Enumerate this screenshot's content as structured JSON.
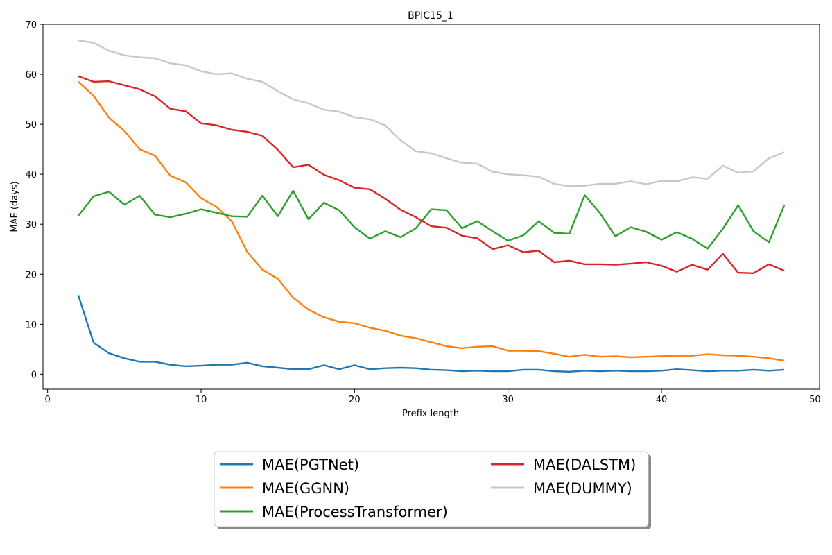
{
  "chart_data": {
    "type": "line",
    "title": "BPIC15_1",
    "xlabel": "Prefix length",
    "ylabel": "MAE (days)",
    "xlim": [
      -0.3,
      50.3
    ],
    "ylim": [
      -3,
      70
    ],
    "xticks": [
      0,
      10,
      20,
      30,
      40,
      50
    ],
    "yticks": [
      0,
      10,
      20,
      30,
      40,
      50,
      60,
      70
    ],
    "grid": false,
    "legend_placement": "below",
    "x": [
      2,
      3,
      4,
      5,
      6,
      7,
      8,
      9,
      10,
      11,
      12,
      13,
      14,
      15,
      16,
      17,
      18,
      19,
      20,
      21,
      22,
      23,
      24,
      25,
      26,
      27,
      28,
      29,
      30,
      31,
      32,
      33,
      34,
      35,
      36,
      37,
      38,
      39,
      40,
      41,
      42,
      43,
      44,
      45,
      46,
      47,
      48
    ],
    "series": [
      {
        "name": "MAE(PGTNet)",
        "color": "#1f77b4",
        "values": [
          15.8,
          6.3,
          4.2,
          3.2,
          2.5,
          2.5,
          1.9,
          1.6,
          1.7,
          1.9,
          1.9,
          2.3,
          1.6,
          1.3,
          1.0,
          1.0,
          1.8,
          1.0,
          1.8,
          1.0,
          1.2,
          1.3,
          1.2,
          0.9,
          0.8,
          0.6,
          0.7,
          0.6,
          0.6,
          0.9,
          0.9,
          0.6,
          0.5,
          0.7,
          0.6,
          0.7,
          0.6,
          0.6,
          0.7,
          1.0,
          0.8,
          0.6,
          0.7,
          0.7,
          0.9,
          0.7,
          0.9
        ]
      },
      {
        "name": "MAE(GGNN)",
        "color": "#ff7f0e",
        "values": [
          58.5,
          55.7,
          51.3,
          48.7,
          45.0,
          43.7,
          39.7,
          38.4,
          35.2,
          33.5,
          30.6,
          24.5,
          20.9,
          19.1,
          15.3,
          12.9,
          11.4,
          10.5,
          10.2,
          9.3,
          8.7,
          7.7,
          7.2,
          6.4,
          5.6,
          5.2,
          5.5,
          5.6,
          4.7,
          4.7,
          4.6,
          4.1,
          3.5,
          3.9,
          3.5,
          3.6,
          3.4,
          3.5,
          3.6,
          3.7,
          3.7,
          4.0,
          3.8,
          3.7,
          3.5,
          3.2,
          2.7
        ]
      },
      {
        "name": "MAE(ProcessTransformer)",
        "color": "#2ca02c",
        "values": [
          31.7,
          35.6,
          36.5,
          33.9,
          35.7,
          31.9,
          31.4,
          32.1,
          33.0,
          32.3,
          31.6,
          31.5,
          35.7,
          31.6,
          36.7,
          31.0,
          34.3,
          32.8,
          29.4,
          27.1,
          28.6,
          27.4,
          29.2,
          33.0,
          32.8,
          29.2,
          30.6,
          28.6,
          26.7,
          27.8,
          30.6,
          28.3,
          28.1,
          35.8,
          32.2,
          27.6,
          29.4,
          28.5,
          26.9,
          28.4,
          27.1,
          25.1,
          29.1,
          33.8,
          28.6,
          26.4,
          33.8
        ]
      },
      {
        "name": "MAE(DALSTM)",
        "color": "#d62728",
        "values": [
          59.6,
          58.5,
          58.6,
          57.8,
          57.0,
          55.6,
          53.1,
          52.6,
          50.2,
          49.8,
          48.9,
          48.5,
          47.7,
          44.9,
          41.4,
          41.9,
          39.9,
          38.8,
          37.3,
          37.0,
          35.1,
          32.9,
          31.4,
          29.6,
          29.3,
          27.7,
          27.2,
          25.0,
          25.8,
          24.4,
          24.7,
          22.4,
          22.7,
          22.0,
          22.0,
          21.9,
          22.1,
          22.4,
          21.7,
          20.5,
          21.9,
          20.9,
          24.1,
          20.3,
          20.2,
          22.0,
          20.7
        ]
      },
      {
        "name": "MAE(DUMMY)",
        "color": "#c7c7c7",
        "values": [
          66.8,
          66.3,
          64.7,
          63.8,
          63.4,
          63.2,
          62.2,
          61.8,
          60.6,
          60.0,
          60.2,
          59.1,
          58.5,
          56.6,
          55.0,
          54.2,
          52.9,
          52.5,
          51.4,
          51.0,
          49.8,
          46.8,
          44.6,
          44.2,
          43.2,
          42.3,
          42.1,
          40.5,
          40.0,
          39.8,
          39.5,
          38.1,
          37.6,
          37.7,
          38.1,
          38.1,
          38.6,
          38.0,
          38.7,
          38.6,
          39.4,
          39.1,
          41.7,
          40.3,
          40.6,
          43.2,
          44.4
        ]
      }
    ]
  }
}
